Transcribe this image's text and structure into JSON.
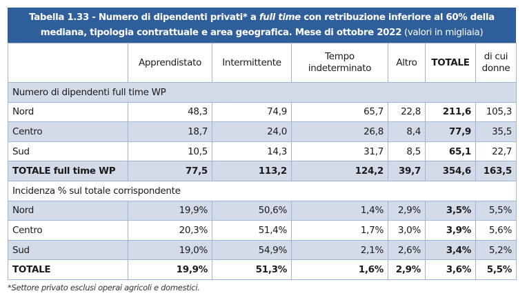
{
  "title": {
    "part1": "Tabella 1.33 - Numero di dipendenti privati* a ",
    "italic": "full time",
    "part2": "  con retribuzione inferiore al 60% della",
    "line2": "mediana, tipologia contrattuale e area geografica. Mese di ottobre 2022",
    "note": " (valori in migliaia)"
  },
  "columns": [
    "",
    "Apprendistato",
    "Intermittente",
    "Tempo indeterminato",
    "Altro",
    "TOTALE",
    "di cui donne"
  ],
  "section1": {
    "heading": "Numero di dipendenti full time WP",
    "rows": [
      {
        "label": "Nord",
        "values": [
          "48,3",
          "74,9",
          "65,7",
          "22,8",
          "211,6",
          "105,3"
        ]
      },
      {
        "label": "Centro",
        "values": [
          "18,7",
          "24,0",
          "26,8",
          "8,4",
          "77,9",
          "35,5"
        ]
      },
      {
        "label": "Sud",
        "values": [
          "10,5",
          "14,3",
          "31,7",
          "8,5",
          "65,1",
          "22,7"
        ]
      }
    ],
    "total": {
      "label": "TOTALE full time WP",
      "values": [
        "77,5",
        "113,2",
        "124,2",
        "39,7",
        "354,6",
        "163,5"
      ]
    }
  },
  "section2": {
    "heading": "Incidenza % sul totale corrispondente",
    "rows": [
      {
        "label": "Nord",
        "values": [
          "19,9%",
          "50,6%",
          "1,4%",
          "2,9%",
          "3,5%",
          "5,5%"
        ]
      },
      {
        "label": "Centro",
        "values": [
          "20,3%",
          "51,4%",
          "1,7%",
          "3,0%",
          "3,9%",
          "5,6%"
        ]
      },
      {
        "label": "Sud",
        "values": [
          "19,0%",
          "54,9%",
          "2,1%",
          "2,6%",
          "3,4%",
          "5,2%"
        ]
      }
    ],
    "total": {
      "label": "TOTALE",
      "values": [
        "19,9%",
        "51,3%",
        "1,6%",
        "2,9%",
        "3,6%",
        "5,5%"
      ]
    }
  },
  "footnote": "*Settore privato esclusi operai agricoli e domestici.",
  "colors": {
    "header_bg": "#2f5f9a",
    "stripe": "#d3dae8",
    "border": "#9db6d3"
  }
}
